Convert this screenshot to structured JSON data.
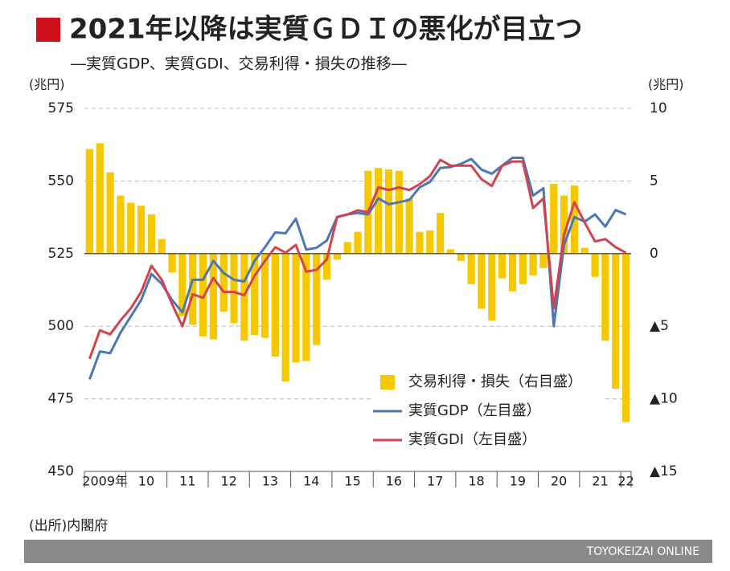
{
  "chart_data": {
    "type": "combo",
    "title": "2021年以降は実質ＧＤＩの悪化が目立つ",
    "subtitle": "―実質GDP、実質GDI、交易利得・損失の推移―",
    "ylabel": "(兆円)",
    "y2label": "(兆円)",
    "source": "(出所)内閣府",
    "footer": "TOYOKEIZAI ONLINE",
    "categories": [
      "2009年",
      null,
      null,
      null,
      "10",
      null,
      null,
      null,
      "11",
      null,
      null,
      null,
      "12",
      null,
      null,
      null,
      "13",
      null,
      null,
      null,
      "14",
      null,
      null,
      null,
      "15",
      null,
      null,
      null,
      "16",
      null,
      null,
      null,
      "17",
      null,
      null,
      null,
      "18",
      null,
      null,
      null,
      "19",
      null,
      null,
      null,
      "20",
      null,
      null,
      null,
      "21",
      null,
      null,
      null,
      "22"
    ],
    "ylim": [
      450,
      575
    ],
    "yticks": [
      450,
      475,
      500,
      525,
      550,
      575
    ],
    "y2lim": [
      -15,
      10
    ],
    "y2ticks": [
      {
        "value": -15,
        "label": "▲15"
      },
      {
        "value": -10,
        "label": "▲10"
      },
      {
        "value": -5,
        "label": "▲5"
      },
      0,
      5,
      10
    ],
    "grid": true,
    "series": [
      {
        "name": "交易利得・損失（右目盛）",
        "type": "bar",
        "axis": "y2",
        "color": "#f5c800",
        "values": [
          7.2,
          7.6,
          5.6,
          4.0,
          3.5,
          3.3,
          2.7,
          1.0,
          -1.3,
          -4.3,
          -4.9,
          -5.7,
          -5.9,
          -4.0,
          -4.8,
          -6.0,
          -5.6,
          -5.8,
          -7.1,
          -8.8,
          -7.5,
          -7.4,
          -6.3,
          -1.8,
          -0.4,
          0.8,
          1.5,
          5.7,
          5.9,
          5.8,
          5.7,
          3.8,
          1.5,
          1.6,
          2.8,
          0.3,
          -0.5,
          -2.1,
          -3.8,
          -4.6,
          -1.7,
          -2.6,
          -2.1,
          -1.5,
          -1.0,
          4.8,
          4.0,
          4.7,
          0.4,
          -1.6,
          -6.0,
          -9.3,
          -11.6
        ]
      },
      {
        "name": "実質GDP（左目盛）",
        "type": "line",
        "color": "#4a78b5",
        "values": [
          481.7,
          491.3,
          490.7,
          497.8,
          503.4,
          509.0,
          518.0,
          514.6,
          509.0,
          504.8,
          516.0,
          516.0,
          522.5,
          518.3,
          516.0,
          515.4,
          522.5,
          527.2,
          532.3,
          532.0,
          537.0,
          526.4,
          527.0,
          529.5,
          537.6,
          538.5,
          539.0,
          538.5,
          544.0,
          542.0,
          542.7,
          543.5,
          547.8,
          549.7,
          554.5,
          554.8,
          555.9,
          557.6,
          553.9,
          552.5,
          555.3,
          558.0,
          558.0,
          545.0,
          547.5,
          500.0,
          528.0,
          537.6,
          536.0,
          538.5,
          534.3,
          540.0,
          538.5
        ]
      },
      {
        "name": "実質GDI（左目盛）",
        "type": "line",
        "color": "#d2424f",
        "values": [
          488.8,
          498.6,
          497.2,
          502.0,
          506.2,
          511.8,
          520.8,
          516.0,
          507.6,
          500.0,
          511.0,
          509.8,
          516.6,
          511.8,
          511.8,
          510.7,
          517.4,
          522.5,
          527.2,
          525.3,
          528.0,
          518.8,
          519.4,
          523.0,
          537.6,
          538.5,
          539.9,
          539.3,
          547.8,
          546.9,
          547.8,
          546.9,
          548.9,
          551.7,
          557.3,
          555.3,
          555.3,
          555.3,
          550.6,
          548.3,
          555.3,
          556.7,
          556.7,
          540.7,
          544.0,
          506.2,
          531.5,
          542.7,
          535.7,
          529.2,
          530.0,
          527.2,
          525.3
        ]
      }
    ]
  }
}
